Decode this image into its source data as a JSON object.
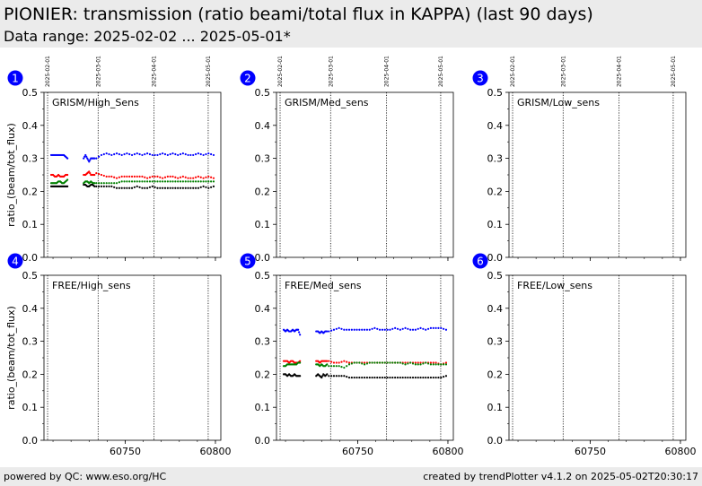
{
  "header": {
    "title": "PIONIER: transmission (ratio beami/total flux in KAPPA) (last 90 days)",
    "subtitle": "Data range: 2025-02-02 ... 2025-05-01*"
  },
  "footer": {
    "left": "powered by QC: www.eso.org/HC",
    "right": "created by trendPlotter v4.1.2 on 2025-05-02T20:30:17"
  },
  "colors": {
    "badge": "#0000ff",
    "series": [
      "#0000ff",
      "#ff0000",
      "#008000",
      "#000000"
    ]
  },
  "chart_data": [
    {
      "type": "scatter",
      "panel_number": "1",
      "label": "GRISM/High_Sens",
      "ylabel": "ratio_(beam/tot_flux)",
      "xlim": [
        60705,
        60803
      ],
      "ylim": [
        0,
        0.5
      ],
      "yticks": [
        "0.0",
        "0.1",
        "0.2",
        "0.3",
        "0.4",
        "0.5"
      ],
      "xticks": [],
      "date_markers": [
        {
          "label": "2025-02-01",
          "x": 60707
        },
        {
          "label": "2025-03-01",
          "x": 60735
        },
        {
          "label": "2025-04-01",
          "x": 60766
        },
        {
          "label": "2025-05-01",
          "x": 60796
        }
      ],
      "series": [
        {
          "segments": [
            {
              "x_range": [
                60709,
                60718
              ],
              "y": [
                0.31,
                0.31,
                0.31,
                0.31,
                0.31,
                0.31,
                0.31,
                0.31,
                0.305,
                0.3
              ]
            },
            {
              "x_range": [
                60727,
                60733
              ],
              "y": [
                0.3,
                0.31,
                0.3,
                0.29,
                0.3,
                0.3,
                0.3
              ]
            },
            {
              "x_range": [
                60734,
                60799
              ],
              "y": [
                0.3,
                0.31,
                0.315,
                0.31,
                0.315,
                0.31,
                0.315,
                0.31,
                0.315,
                0.31,
                0.315,
                0.31,
                0.31,
                0.315,
                0.31,
                0.315,
                0.31,
                0.315,
                0.31,
                0.31,
                0.315,
                0.31,
                0.315,
                0.31
              ]
            }
          ]
        },
        {
          "segments": [
            {
              "x_range": [
                60709,
                60718
              ],
              "y": [
                0.25,
                0.25,
                0.245,
                0.245,
                0.25,
                0.245,
                0.245,
                0.245,
                0.25,
                0.25
              ]
            },
            {
              "x_range": [
                60727,
                60733
              ],
              "y": [
                0.25,
                0.25,
                0.255,
                0.26,
                0.25,
                0.25,
                0.25
              ]
            },
            {
              "x_range": [
                60734,
                60799
              ],
              "y": [
                0.255,
                0.25,
                0.245,
                0.245,
                0.24,
                0.245,
                0.245,
                0.245,
                0.245,
                0.245,
                0.24,
                0.245,
                0.245,
                0.24,
                0.245,
                0.245,
                0.24,
                0.245,
                0.24,
                0.24,
                0.245,
                0.24,
                0.245,
                0.24
              ]
            }
          ]
        },
        {
          "segments": [
            {
              "x_range": [
                60709,
                60718
              ],
              "y": [
                0.225,
                0.225,
                0.225,
                0.225,
                0.23,
                0.23,
                0.225,
                0.225,
                0.23,
                0.235
              ]
            },
            {
              "x_range": [
                60727,
                60733
              ],
              "y": [
                0.225,
                0.23,
                0.23,
                0.225,
                0.23,
                0.225,
                0.225
              ]
            },
            {
              "x_range": [
                60734,
                60799
              ],
              "y": [
                0.225,
                0.225,
                0.225,
                0.225,
                0.225,
                0.23,
                0.23,
                0.23,
                0.23,
                0.23,
                0.23,
                0.23,
                0.23,
                0.23,
                0.23,
                0.23,
                0.23,
                0.23,
                0.23,
                0.23,
                0.23,
                0.23,
                0.23,
                0.23
              ]
            }
          ]
        },
        {
          "segments": [
            {
              "x_range": [
                60709,
                60718
              ],
              "y": [
                0.215,
                0.215,
                0.215,
                0.215,
                0.215,
                0.215,
                0.215,
                0.215,
                0.215,
                0.215
              ]
            },
            {
              "x_range": [
                60727,
                60733
              ],
              "y": [
                0.22,
                0.22,
                0.215,
                0.215,
                0.22,
                0.22,
                0.215
              ]
            },
            {
              "x_range": [
                60734,
                60799
              ],
              "y": [
                0.215,
                0.215,
                0.215,
                0.215,
                0.21,
                0.21,
                0.21,
                0.21,
                0.215,
                0.21,
                0.21,
                0.215,
                0.21,
                0.21,
                0.21,
                0.21,
                0.21,
                0.21,
                0.21,
                0.21,
                0.21,
                0.215,
                0.21,
                0.215
              ]
            }
          ]
        }
      ]
    },
    {
      "type": "scatter",
      "panel_number": "2",
      "label": "GRISM/Med_sens",
      "ylabel": "",
      "xlim": [
        60705,
        60803
      ],
      "ylim": [
        0,
        0.5
      ],
      "yticks": [
        "0.0",
        "0.1",
        "0.2",
        "0.3",
        "0.4",
        "0.5"
      ],
      "xticks": [],
      "date_markers": [
        {
          "label": "2025-02-01",
          "x": 60707
        },
        {
          "label": "2025-03-01",
          "x": 60735
        },
        {
          "label": "2025-04-01",
          "x": 60766
        },
        {
          "label": "2025-05-01",
          "x": 60796
        }
      ],
      "series": []
    },
    {
      "type": "scatter",
      "panel_number": "3",
      "label": "GRISM/Low_sens",
      "ylabel": "",
      "xlim": [
        60705,
        60803
      ],
      "ylim": [
        0,
        0.5
      ],
      "yticks": [
        "0.0",
        "0.1",
        "0.2",
        "0.3",
        "0.4",
        "0.5"
      ],
      "xticks": [],
      "date_markers": [
        {
          "label": "2025-02-01",
          "x": 60707
        },
        {
          "label": "2025-03-01",
          "x": 60735
        },
        {
          "label": "2025-04-01",
          "x": 60766
        },
        {
          "label": "2025-05-01",
          "x": 60796
        }
      ],
      "series": []
    },
    {
      "type": "scatter",
      "panel_number": "4",
      "label": "FREE/High_sens",
      "ylabel": "ratio_(beam/tot_flux)",
      "xlim": [
        60705,
        60803
      ],
      "ylim": [
        0,
        0.5
      ],
      "yticks": [
        "0.0",
        "0.1",
        "0.2",
        "0.3",
        "0.4",
        "0.5"
      ],
      "xticks": [
        {
          "label": "60750",
          "x": 60750
        },
        {
          "label": "60800",
          "x": 60800
        }
      ],
      "date_markers": [
        {
          "label": "",
          "x": 60707
        },
        {
          "label": "",
          "x": 60735
        },
        {
          "label": "",
          "x": 60766
        },
        {
          "label": "",
          "x": 60796
        }
      ],
      "series": []
    },
    {
      "type": "scatter",
      "panel_number": "5",
      "label": "FREE/Med_sens",
      "ylabel": "",
      "xlim": [
        60705,
        60803
      ],
      "ylim": [
        0,
        0.5
      ],
      "yticks": [
        "0.0",
        "0.1",
        "0.2",
        "0.3",
        "0.4",
        "0.5"
      ],
      "xticks": [
        {
          "label": "60750",
          "x": 60750
        },
        {
          "label": "60800",
          "x": 60800
        }
      ],
      "date_markers": [
        {
          "label": "",
          "x": 60707
        },
        {
          "label": "",
          "x": 60735
        },
        {
          "label": "",
          "x": 60766
        },
        {
          "label": "",
          "x": 60796
        }
      ],
      "series": [
        {
          "segments": [
            {
              "x_range": [
                60709,
                60718
              ],
              "y": [
                0.335,
                0.33,
                0.335,
                0.33,
                0.33,
                0.335,
                0.33,
                0.335,
                0.335,
                0.32
              ]
            },
            {
              "x_range": [
                60727,
                60733
              ],
              "y": [
                0.33,
                0.33,
                0.325,
                0.33,
                0.325,
                0.33,
                0.33
              ]
            },
            {
              "x_range": [
                60734,
                60799
              ],
              "y": [
                0.33,
                0.335,
                0.34,
                0.335,
                0.335,
                0.335,
                0.335,
                0.335,
                0.335,
                0.34,
                0.335,
                0.335,
                0.335,
                0.34,
                0.335,
                0.34,
                0.335,
                0.335,
                0.34,
                0.335,
                0.34,
                0.34,
                0.34,
                0.335
              ]
            }
          ]
        },
        {
          "segments": [
            {
              "x_range": [
                60709,
                60718
              ],
              "y": [
                0.24,
                0.24,
                0.24,
                0.235,
                0.24,
                0.24,
                0.235,
                0.235,
                0.235,
                0.24
              ]
            },
            {
              "x_range": [
                60727,
                60733
              ],
              "y": [
                0.24,
                0.24,
                0.235,
                0.24,
                0.24,
                0.24,
                0.24
              ]
            },
            {
              "x_range": [
                60734,
                60799
              ],
              "y": [
                0.24,
                0.235,
                0.235,
                0.24,
                0.235,
                0.235,
                0.235,
                0.235,
                0.235,
                0.235,
                0.235,
                0.235,
                0.235,
                0.235,
                0.235,
                0.235,
                0.235,
                0.235,
                0.235,
                0.235,
                0.235,
                0.235,
                0.23,
                0.235
              ]
            }
          ]
        },
        {
          "segments": [
            {
              "x_range": [
                60709,
                60718
              ],
              "y": [
                0.225,
                0.225,
                0.23,
                0.23,
                0.23,
                0.23,
                0.23,
                0.23,
                0.235,
                0.235
              ]
            },
            {
              "x_range": [
                60727,
                60733
              ],
              "y": [
                0.23,
                0.23,
                0.225,
                0.23,
                0.225,
                0.225,
                0.23
              ]
            },
            {
              "x_range": [
                60734,
                60799
              ],
              "y": [
                0.225,
                0.225,
                0.225,
                0.22,
                0.23,
                0.235,
                0.235,
                0.23,
                0.235,
                0.235,
                0.235,
                0.235,
                0.235,
                0.235,
                0.235,
                0.23,
                0.235,
                0.23,
                0.23,
                0.235,
                0.23,
                0.23,
                0.23,
                0.23
              ]
            }
          ]
        },
        {
          "segments": [
            {
              "x_range": [
                60709,
                60718
              ],
              "y": [
                0.2,
                0.2,
                0.195,
                0.2,
                0.195,
                0.195,
                0.2,
                0.195,
                0.195,
                0.195
              ]
            },
            {
              "x_range": [
                60727,
                60733
              ],
              "y": [
                0.195,
                0.2,
                0.195,
                0.19,
                0.2,
                0.195,
                0.2
              ]
            },
            {
              "x_range": [
                60734,
                60799
              ],
              "y": [
                0.195,
                0.195,
                0.195,
                0.195,
                0.19,
                0.19,
                0.19,
                0.19,
                0.19,
                0.19,
                0.19,
                0.19,
                0.19,
                0.19,
                0.19,
                0.19,
                0.19,
                0.19,
                0.19,
                0.19,
                0.19,
                0.19,
                0.19,
                0.195
              ]
            }
          ]
        }
      ]
    },
    {
      "type": "scatter",
      "panel_number": "6",
      "label": "FREE/Low_sens",
      "ylabel": "",
      "xlim": [
        60705,
        60803
      ],
      "ylim": [
        0,
        0.5
      ],
      "yticks": [
        "0.0",
        "0.1",
        "0.2",
        "0.3",
        "0.4",
        "0.5"
      ],
      "xticks": [
        {
          "label": "60750",
          "x": 60750
        },
        {
          "label": "60800",
          "x": 60800
        }
      ],
      "date_markers": [
        {
          "label": "",
          "x": 60707
        },
        {
          "label": "",
          "x": 60735
        },
        {
          "label": "",
          "x": 60766
        },
        {
          "label": "",
          "x": 60796
        }
      ],
      "series": []
    }
  ]
}
